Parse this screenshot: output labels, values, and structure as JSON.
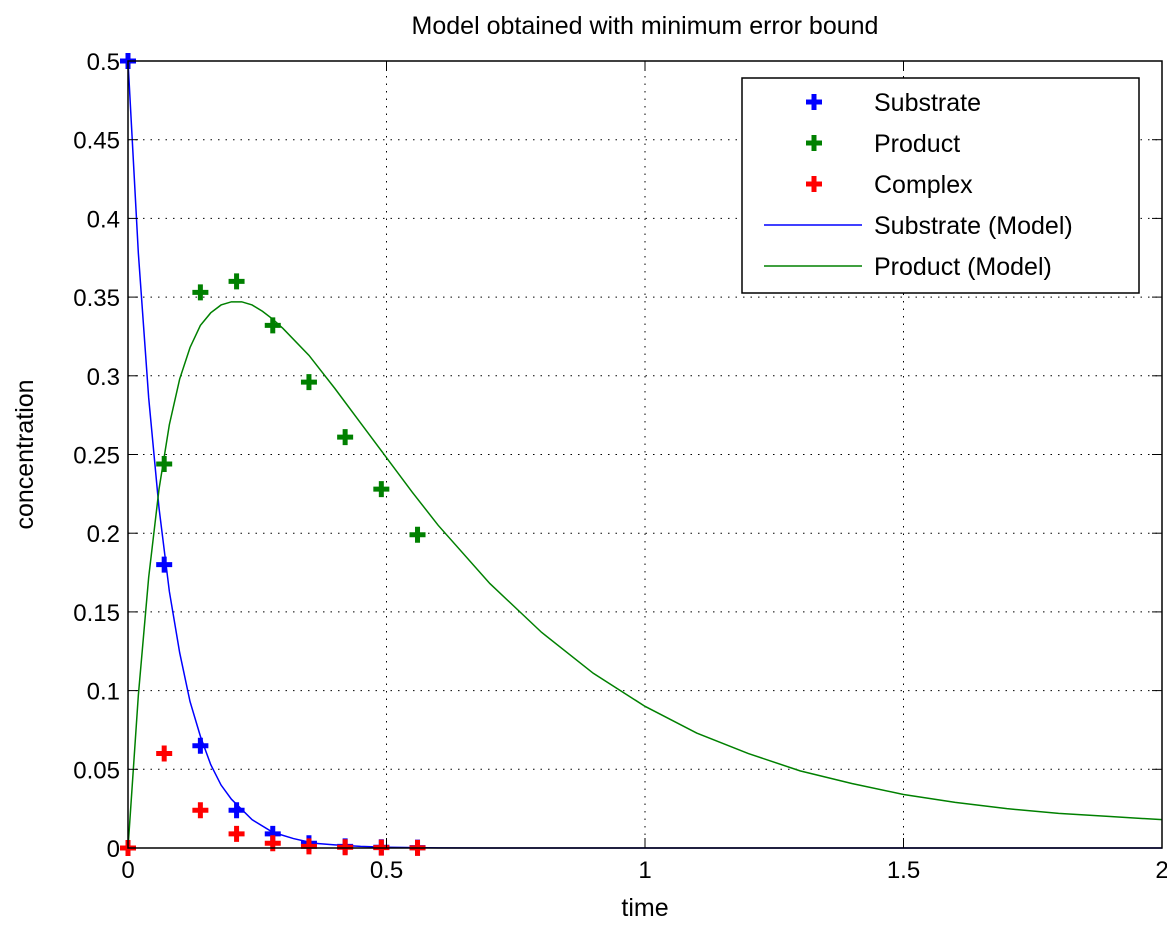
{
  "chart_data": {
    "type": "scatter",
    "title": "Model obtained with minimum error bound",
    "xlabel": "time",
    "ylabel": "concentration",
    "xlim": [
      0,
      2
    ],
    "ylim": [
      0,
      0.5
    ],
    "grid": true,
    "legend_position": "top-right",
    "x_ticks": [
      0,
      0.5,
      1,
      1.5,
      2
    ],
    "x_tick_labels": [
      "0",
      "0.5",
      "1",
      "1.5",
      "2"
    ],
    "y_ticks": [
      0,
      0.05,
      0.1,
      0.15,
      0.2,
      0.25,
      0.3,
      0.35,
      0.4,
      0.45,
      0.5
    ],
    "y_tick_labels": [
      "0",
      "0.05",
      "0.1",
      "0.15",
      "0.2",
      "0.25",
      "0.3",
      "0.35",
      "0.4",
      "0.45",
      "0.5"
    ],
    "series": [
      {
        "name": "Substrate",
        "kind": "markers",
        "marker": "plus",
        "color": "#0000ff",
        "x": [
          0,
          0.07,
          0.14,
          0.21,
          0.28,
          0.35,
          0.42,
          0.49,
          0.56
        ],
        "y": [
          0.5,
          0.18,
          0.065,
          0.024,
          0.009,
          0.003,
          0.001,
          0.0005,
          0.0002
        ]
      },
      {
        "name": "Product",
        "kind": "markers",
        "marker": "plus",
        "color": "#008000",
        "x": [
          0,
          0.07,
          0.14,
          0.21,
          0.28,
          0.35,
          0.42,
          0.49,
          0.56
        ],
        "y": [
          0,
          0.244,
          0.353,
          0.36,
          0.332,
          0.296,
          0.261,
          0.228,
          0.199
        ]
      },
      {
        "name": "Complex",
        "kind": "markers",
        "marker": "plus",
        "color": "#ff0000",
        "x": [
          0,
          0.07,
          0.14,
          0.21,
          0.28,
          0.35,
          0.42,
          0.49,
          0.56
        ],
        "y": [
          0,
          0.06,
          0.024,
          0.009,
          0.003,
          0.001,
          0.0005,
          0.0002,
          0.0001
        ]
      },
      {
        "name": "Substrate (Model)",
        "kind": "line",
        "color": "#0000ff",
        "x": [
          0,
          0.02,
          0.04,
          0.06,
          0.08,
          0.1,
          0.12,
          0.14,
          0.16,
          0.18,
          0.2,
          0.24,
          0.28,
          0.32,
          0.36,
          0.4,
          0.45,
          0.5,
          0.6,
          0.7,
          0.8,
          1.0,
          1.5,
          2.0
        ],
        "y": [
          0.5,
          0.378,
          0.286,
          0.216,
          0.163,
          0.124,
          0.093,
          0.071,
          0.053,
          0.04,
          0.031,
          0.018,
          0.01,
          0.006,
          0.003,
          0.002,
          0.001,
          0.0005,
          0.0001,
          0,
          0,
          0,
          0,
          0
        ]
      },
      {
        "name": "Product (Model)",
        "kind": "line",
        "color": "#008000",
        "x": [
          0,
          0.02,
          0.04,
          0.06,
          0.08,
          0.1,
          0.12,
          0.14,
          0.16,
          0.18,
          0.2,
          0.22,
          0.24,
          0.26,
          0.28,
          0.3,
          0.35,
          0.4,
          0.45,
          0.5,
          0.55,
          0.6,
          0.7,
          0.8,
          0.9,
          1.0,
          1.1,
          1.2,
          1.3,
          1.4,
          1.5,
          1.6,
          1.7,
          1.8,
          1.9,
          2.0
        ],
        "y": [
          0,
          0.097,
          0.172,
          0.228,
          0.269,
          0.298,
          0.318,
          0.332,
          0.34,
          0.345,
          0.347,
          0.347,
          0.345,
          0.341,
          0.336,
          0.33,
          0.313,
          0.292,
          0.27,
          0.248,
          0.226,
          0.205,
          0.168,
          0.137,
          0.111,
          0.09,
          0.073,
          0.06,
          0.049,
          0.041,
          0.034,
          0.029,
          0.025,
          0.022,
          0.02,
          0.018
        ]
      }
    ]
  }
}
